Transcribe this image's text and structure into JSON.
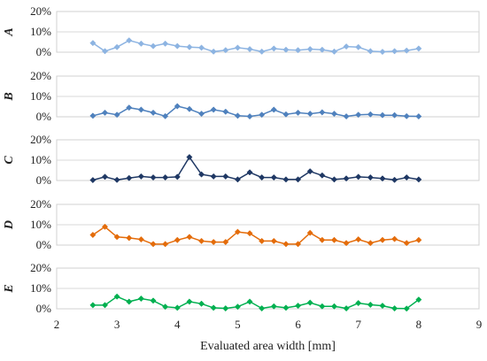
{
  "chart_data": {
    "type": "line",
    "xlabel": "Evaluated area width [mm]",
    "x_ticks": [
      2,
      3,
      4,
      5,
      6,
      7,
      8,
      9
    ],
    "xlim": [
      2,
      9
    ],
    "ylim": [
      0,
      20
    ],
    "y_ticks": [
      "0%",
      "10%",
      "20%"
    ],
    "grid": "horizontal",
    "x": [
      2.6,
      2.8,
      3.0,
      3.2,
      3.4,
      3.6,
      3.8,
      4.0,
      4.2,
      4.4,
      4.6,
      4.8,
      5.0,
      5.2,
      5.4,
      5.6,
      5.8,
      6.0,
      6.2,
      6.4,
      6.6,
      6.8,
      7.0,
      7.2,
      7.4,
      7.6,
      7.8,
      8.0
    ],
    "panels": [
      {
        "label": "A",
        "color": "#8DB4E2",
        "values": [
          4.5,
          0.5,
          2.5,
          5.8,
          4.2,
          3.0,
          4.2,
          3.0,
          2.5,
          2.2,
          0.3,
          1.0,
          2.2,
          1.5,
          0.3,
          1.8,
          1.2,
          1.0,
          1.5,
          1.2,
          0.3,
          2.8,
          2.5,
          0.5,
          0.2,
          0.5,
          0.8,
          1.8
        ]
      },
      {
        "label": "B",
        "color": "#4F81BD",
        "values": [
          0.5,
          2.0,
          1.0,
          4.5,
          3.5,
          2.0,
          0.3,
          5.2,
          3.8,
          1.5,
          3.5,
          2.5,
          0.5,
          0.2,
          1.0,
          3.5,
          1.2,
          2.0,
          1.5,
          2.2,
          1.5,
          0.2,
          1.0,
          1.2,
          0.8,
          0.8,
          0.3,
          0.2
        ]
      },
      {
        "label": "C",
        "color": "#1F3864",
        "values": [
          0.2,
          1.8,
          0.3,
          1.2,
          2.0,
          1.5,
          1.5,
          1.8,
          11.5,
          3.0,
          2.0,
          2.0,
          0.5,
          4.0,
          1.5,
          1.5,
          0.5,
          0.5,
          4.5,
          2.5,
          0.5,
          1.0,
          1.8,
          1.5,
          1.0,
          0.3,
          1.5,
          0.5
        ]
      },
      {
        "label": "D",
        "color": "#E46C0A",
        "values": [
          5.0,
          9.0,
          4.0,
          3.5,
          2.8,
          0.5,
          0.5,
          2.5,
          4.0,
          2.0,
          1.5,
          1.5,
          6.5,
          5.8,
          2.0,
          2.0,
          0.5,
          0.5,
          6.0,
          2.5,
          2.5,
          1.0,
          2.8,
          1.0,
          2.5,
          3.0,
          1.0,
          2.5
        ]
      },
      {
        "label": "E",
        "color": "#00B050",
        "values": [
          1.8,
          1.8,
          6.0,
          3.5,
          5.0,
          4.0,
          1.0,
          0.5,
          3.5,
          2.5,
          0.5,
          0.2,
          1.0,
          3.5,
          0.2,
          1.2,
          0.5,
          1.5,
          3.0,
          1.2,
          1.2,
          0.2,
          2.8,
          2.0,
          1.5,
          0.2,
          0.1,
          4.5
        ]
      }
    ]
  }
}
